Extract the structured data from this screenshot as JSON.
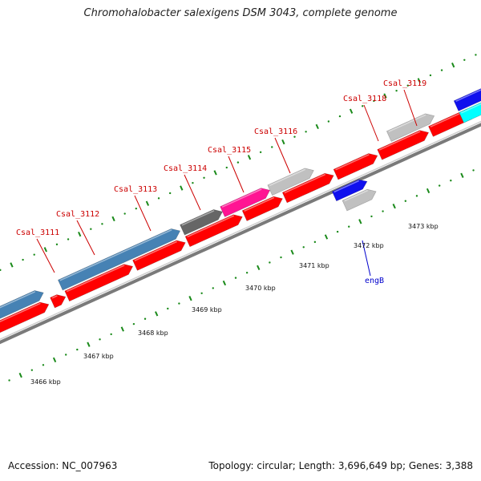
{
  "title": "Chromohalobacter salexigens DSM 3043, complete genome",
  "footer": {
    "accession": "Accession: NC_007963",
    "stats": "Topology: circular; Length: 3,696,649 bp; Genes: 3,388"
  },
  "colors": {
    "cds_red": "#ff0000",
    "gene_steelblue": "#4682b4",
    "gene_darkgray": "#666666",
    "gene_magenta": "#ff1493",
    "gene_silver": "#c0c0c0",
    "gene_blue": "#1010ee",
    "gene_cyan": "#00ffff",
    "tick_green": "#1a8a1a",
    "backbone_gray": "#808080",
    "label_red": "#cc0000",
    "label_blue": "#0000cc"
  },
  "scale_labels": [
    "3466 kbp",
    "3467 kbp",
    "3468 kbp",
    "3469 kbp",
    "3470 kbp",
    "3471 kbp",
    "3472 kbp",
    "3473 kbp"
  ],
  "gene_labels": [
    {
      "text": "Csal_3111",
      "color": "red"
    },
    {
      "text": "Csal_3112",
      "color": "red"
    },
    {
      "text": "Csal_3113",
      "color": "red"
    },
    {
      "text": "Csal_3114",
      "color": "red"
    },
    {
      "text": "Csal_3115",
      "color": "red"
    },
    {
      "text": "Csal_3116",
      "color": "red"
    },
    {
      "text": "Csal_3118",
      "color": "red"
    },
    {
      "text": "Csal_3119",
      "color": "red"
    },
    {
      "text": "engB",
      "color": "blue"
    }
  ]
}
